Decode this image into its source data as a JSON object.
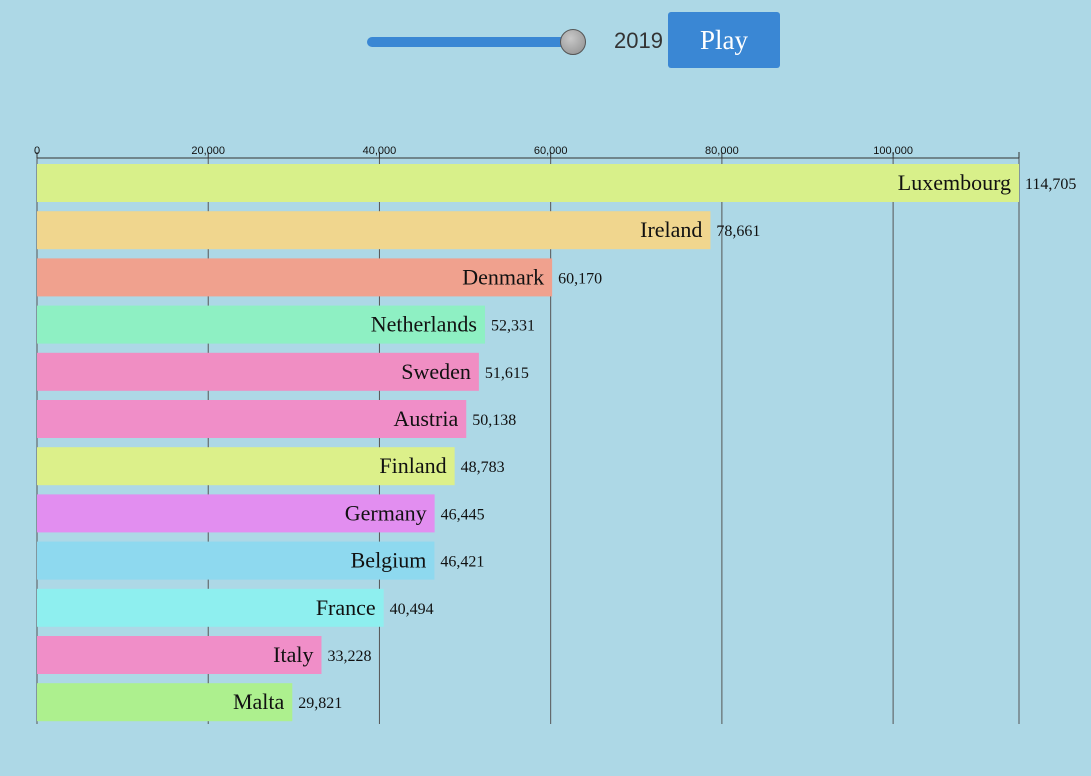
{
  "controls": {
    "year": "2019",
    "play_label": "Play",
    "slider_value": 1.0
  },
  "chart_data": {
    "type": "bar",
    "orientation": "horizontal",
    "title": "",
    "xlabel": "",
    "ylabel": "",
    "xlim": [
      0,
      114705
    ],
    "xticks": [
      0,
      20000,
      40000,
      60000,
      80000,
      100000
    ],
    "xtick_labels": [
      "0",
      "20,000",
      "40,000",
      "60,000",
      "80,000",
      "100,000"
    ],
    "grid": true,
    "legend": "none",
    "categories": [
      "Luxembourg",
      "Ireland",
      "Denmark",
      "Netherlands",
      "Sweden",
      "Austria",
      "Finland",
      "Germany",
      "Belgium",
      "France",
      "Italy",
      "Malta"
    ],
    "values": [
      114705,
      78661,
      60170,
      52331,
      51615,
      50138,
      48783,
      46445,
      46421,
      40494,
      33228,
      29821
    ],
    "value_labels": [
      "114,705",
      "78,661",
      "60,170",
      "52,331",
      "51,615",
      "50,138",
      "48,783",
      "46,445",
      "46,421",
      "40,494",
      "33,228",
      "29,821"
    ],
    "colors": [
      "#d8f08a",
      "#f0d68e",
      "#f0a18e",
      "#8ef0c3",
      "#f08ec3",
      "#f08ec8",
      "#dcf08a",
      "#e28ef0",
      "#8ed9ef",
      "#8eefef",
      "#f08ec8",
      "#adf08e"
    ]
  }
}
